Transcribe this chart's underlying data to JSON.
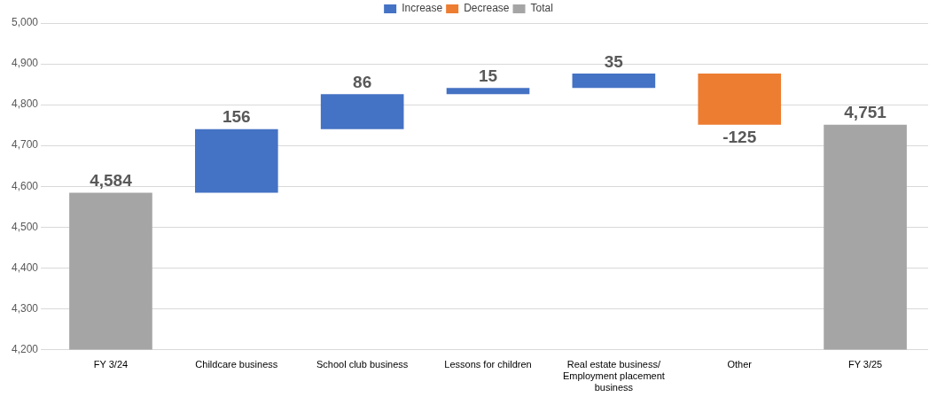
{
  "chart_data": {
    "type": "bar",
    "categories": [
      "FY 3/24",
      "Childcare business",
      "School club business",
      "Lessons for children",
      "Real estate business/Employment placement business",
      "Other",
      "FY 3/25"
    ],
    "series": [
      {
        "name": "Increase",
        "color": "#4472c4",
        "values": [
          null,
          156,
          86,
          15,
          35,
          null,
          null
        ],
        "base": [
          null,
          4584,
          4740,
          4826,
          4841,
          null,
          null
        ],
        "value_labels": [
          null,
          "156",
          "86",
          "15",
          "35",
          null,
          null
        ]
      },
      {
        "name": "Decrease",
        "color": "#ed7d31",
        "values": [
          null,
          null,
          null,
          null,
          null,
          -125,
          null
        ],
        "base": [
          null,
          null,
          null,
          null,
          null,
          4876,
          null
        ],
        "value_labels": [
          null,
          null,
          null,
          null,
          null,
          "-125",
          null
        ]
      },
      {
        "name": "Total",
        "color": "#a5a5a5",
        "values": [
          4584,
          null,
          null,
          null,
          null,
          null,
          4751
        ],
        "value_labels": [
          "4,584",
          null,
          null,
          null,
          null,
          null,
          "4,751"
        ]
      }
    ],
    "ylim": [
      4200,
      5000
    ],
    "yticks": [
      {
        "value": 4200,
        "label": "4,200"
      },
      {
        "value": 4300,
        "label": "4,300"
      },
      {
        "value": 4400,
        "label": "4,400"
      },
      {
        "value": 4500,
        "label": "4,500"
      },
      {
        "value": 4600,
        "label": "4,600"
      },
      {
        "value": 4700,
        "label": "4,700"
      },
      {
        "value": 4800,
        "label": "4,800"
      },
      {
        "value": 4900,
        "label": "4,900"
      },
      {
        "value": 5000,
        "label": "5,000"
      }
    ],
    "grid": "y",
    "legend": "top"
  }
}
